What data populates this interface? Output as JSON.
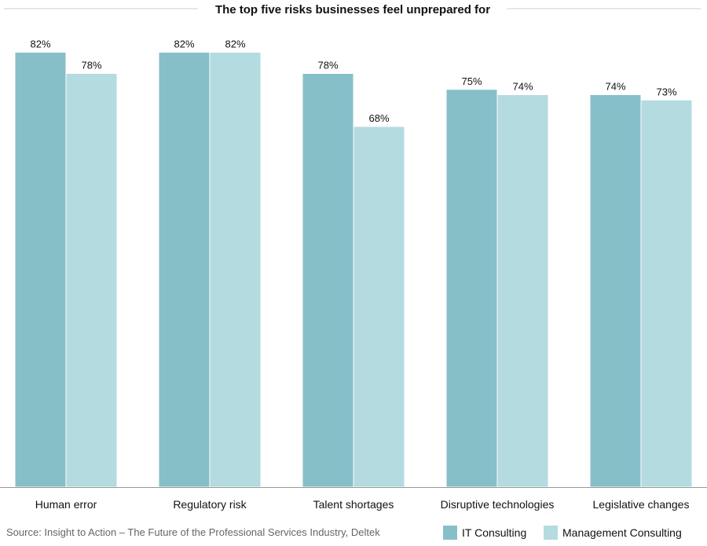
{
  "chart_data": {
    "type": "bar",
    "title": "The top five risks businesses feel unprepared for",
    "categories": [
      "Human error",
      "Regulatory risk",
      "Talent shortages",
      "Disruptive technologies",
      "Legislative changes"
    ],
    "series": [
      {
        "name": "IT Consulting",
        "values": [
          82,
          82,
          78,
          75,
          74
        ],
        "color": "#87bfc9"
      },
      {
        "name": "Management Consulting",
        "values": [
          78,
          82,
          68,
          74,
          73
        ],
        "color": "#b3dbe0"
      }
    ],
    "value_suffix": "%",
    "ylim": [
      0,
      100
    ],
    "grid": false,
    "legend_position": "bottom-right"
  },
  "source": "Source: Insight to Action – The Future of the Professional Services Industry, Deltek"
}
